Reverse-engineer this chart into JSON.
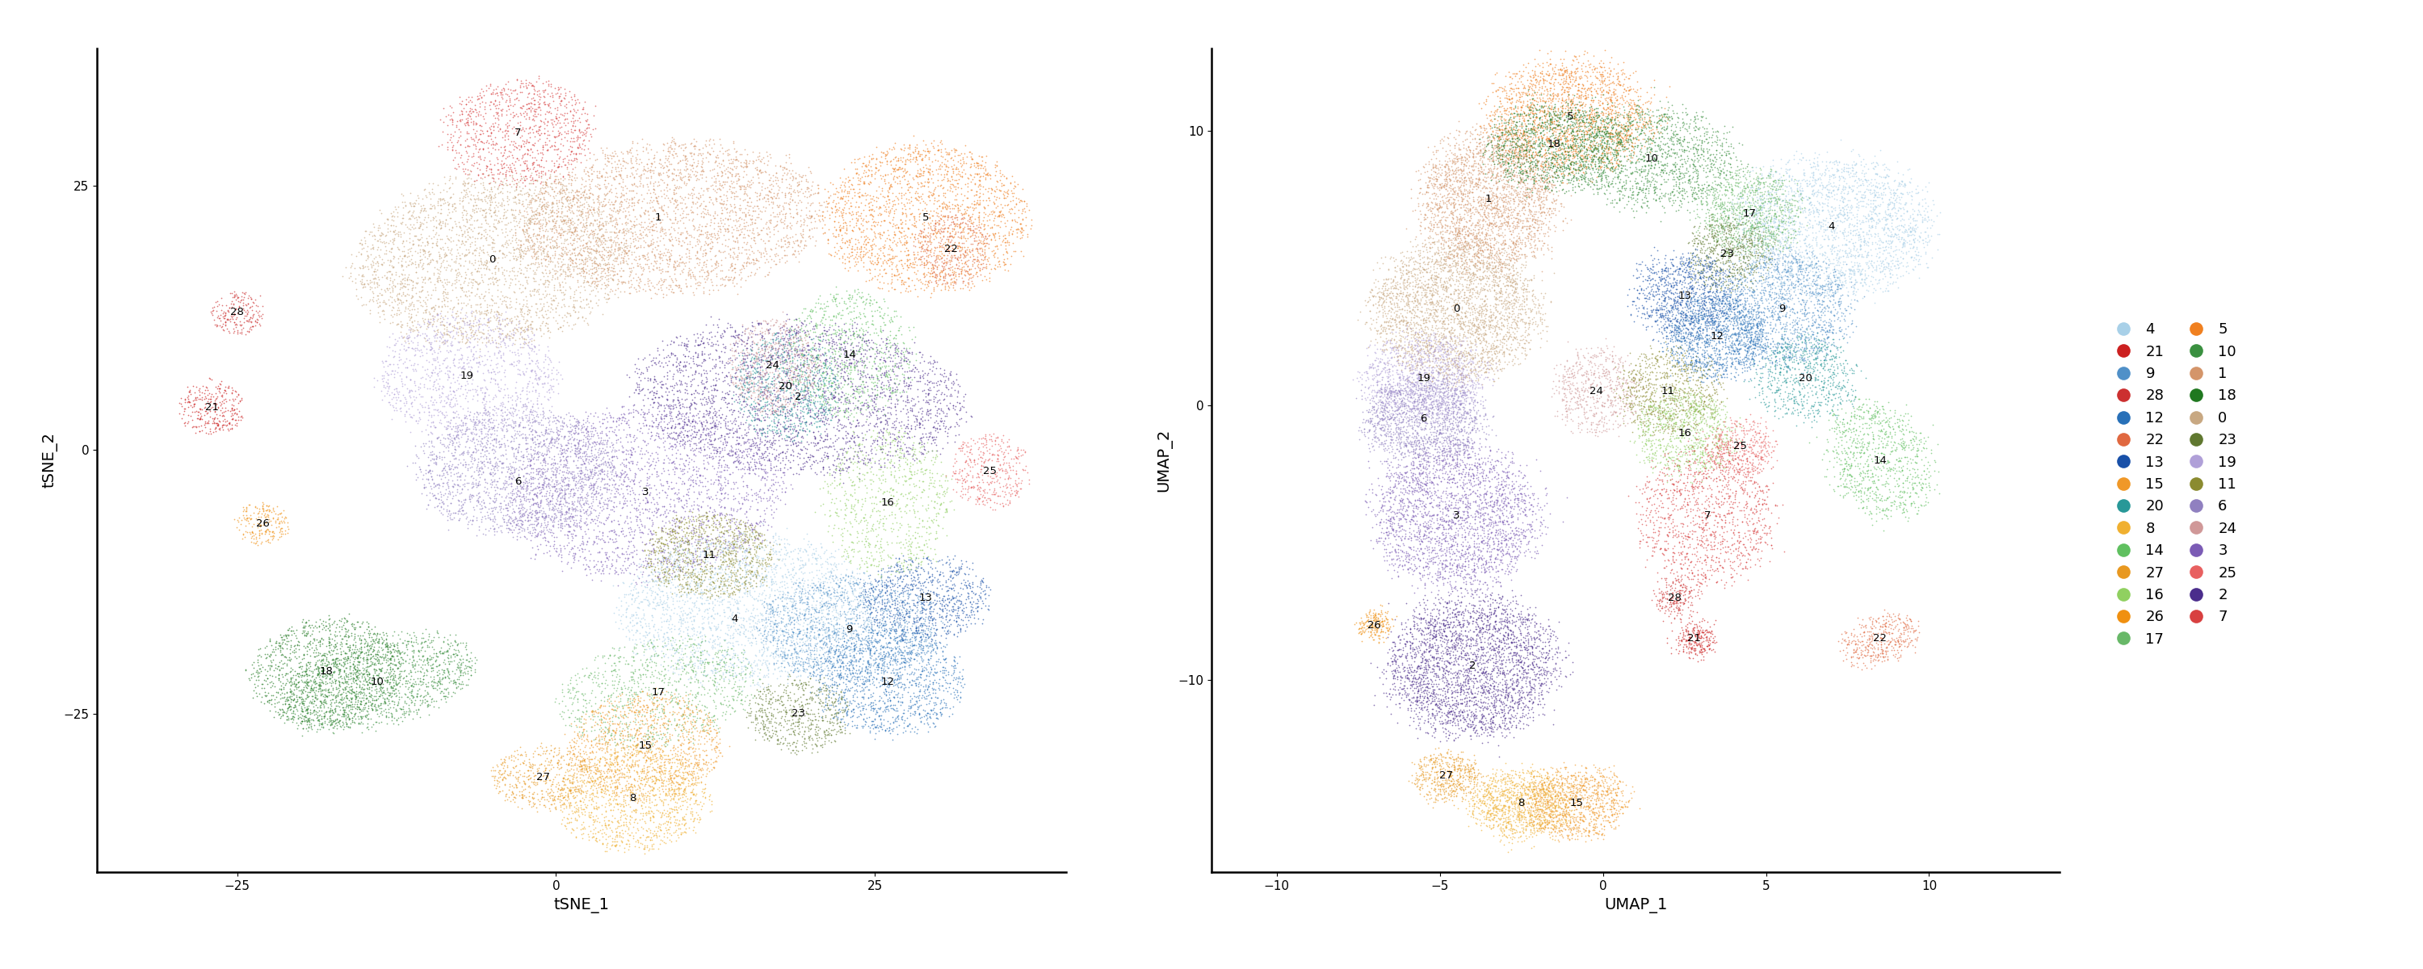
{
  "cluster_colors": {
    "0": "#C8A882",
    "1": "#D4956A",
    "2": "#4B2D8C",
    "3": "#7B5BB5",
    "4": "#A8D0E8",
    "5": "#F08020",
    "6": "#9080C0",
    "7": "#D84040",
    "8": "#F0B030",
    "9": "#5090C8",
    "10": "#3A9040",
    "11": "#8B8B30",
    "12": "#2870B8",
    "13": "#1850A8",
    "14": "#60C060",
    "15": "#F09828",
    "16": "#90D060",
    "17": "#68B868",
    "18": "#207820",
    "19": "#B0A0D8",
    "20": "#289898",
    "21": "#CC2020",
    "22": "#E06840",
    "23": "#607830",
    "24": "#D09898",
    "25": "#E86060",
    "26": "#F09010",
    "27": "#E89820",
    "28": "#CC3030"
  },
  "legend_order": [
    4,
    21,
    9,
    28,
    12,
    22,
    13,
    15,
    20,
    8,
    14,
    27,
    16,
    26,
    17,
    5,
    10,
    1,
    18,
    0,
    23,
    19,
    11,
    6,
    24,
    3,
    25,
    2,
    7
  ],
  "tsne_xlim": [
    -36,
    40
  ],
  "tsne_ylim": [
    -40,
    38
  ],
  "umap_xlim": [
    -12,
    14
  ],
  "umap_ylim": [
    -17,
    13
  ],
  "tsne_xlabel": "tSNE_1",
  "tsne_ylabel": "tSNE_2",
  "umap_xlabel": "UMAP_1",
  "umap_ylabel": "UMAP_2",
  "tsne_xticks": [
    -25,
    0,
    25
  ],
  "tsne_yticks": [
    -25,
    0,
    25
  ],
  "umap_xticks": [
    -10,
    -5,
    0,
    5,
    10
  ],
  "umap_yticks": [
    -10,
    0,
    10
  ],
  "point_size": 1.5,
  "alpha": 0.65,
  "background_color": "#FFFFFF"
}
